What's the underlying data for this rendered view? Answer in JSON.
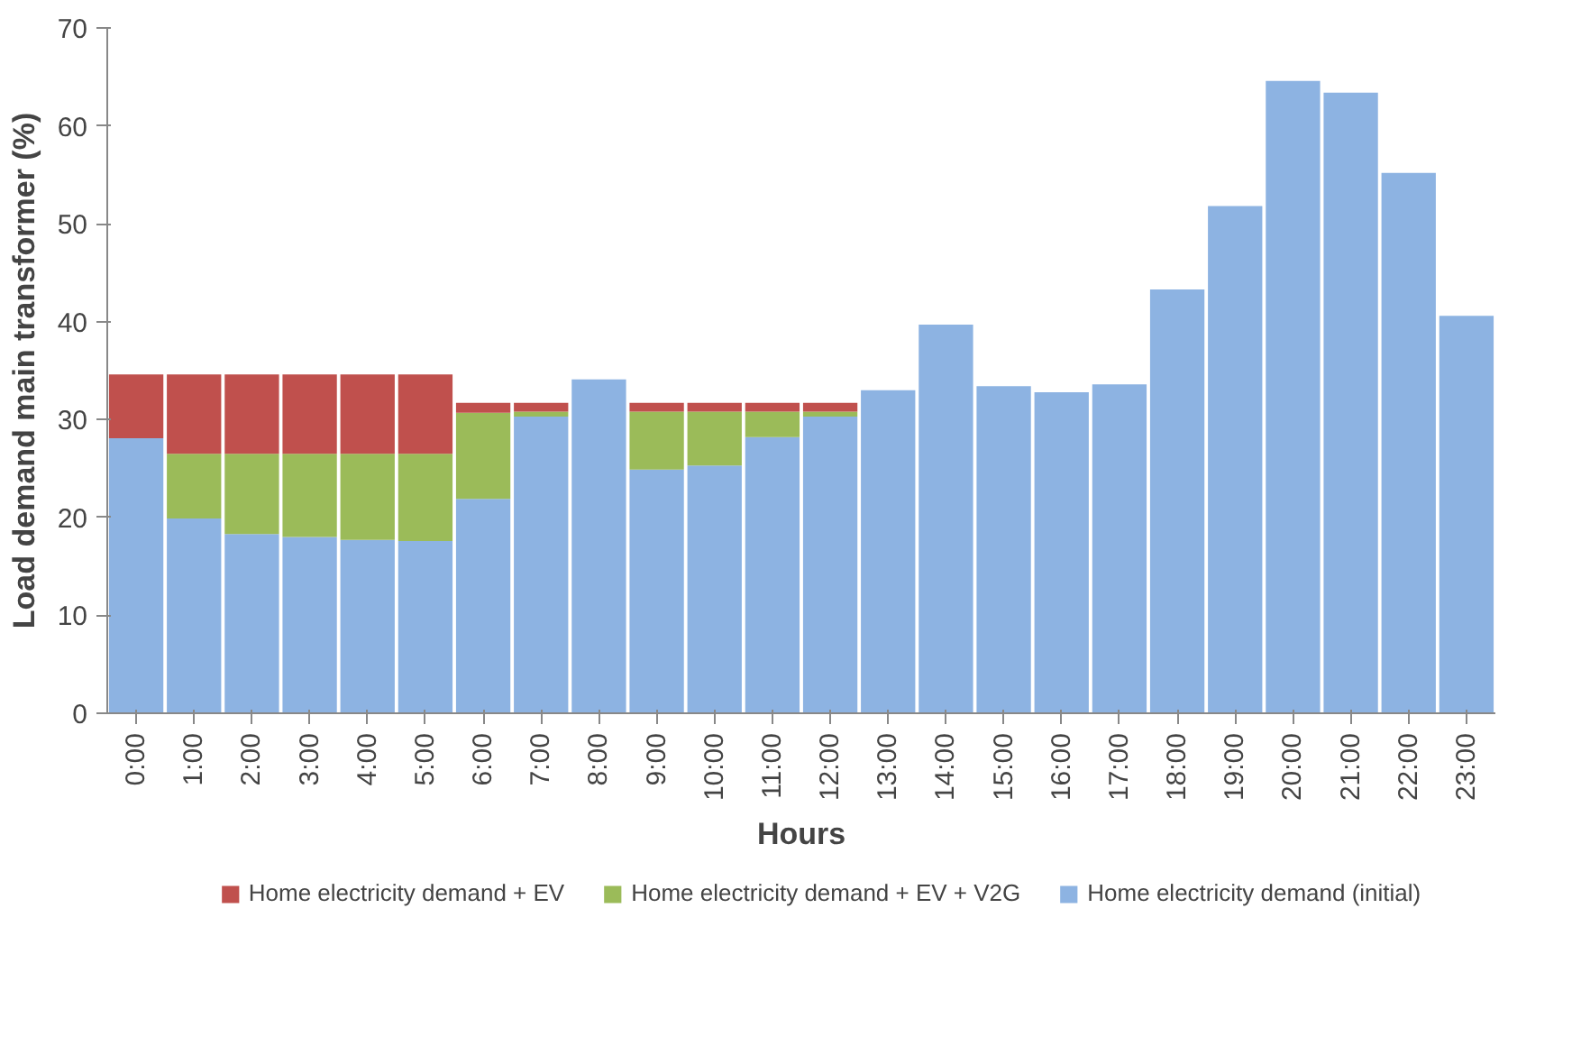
{
  "chart_data": {
    "type": "bar",
    "stacked": true,
    "xlabel": "Hours",
    "ylabel": "Load demand main transformer (%)",
    "categories": [
      "0:00",
      "1:00",
      "2:00",
      "3:00",
      "4:00",
      "5:00",
      "6:00",
      "7:00",
      "8:00",
      "9:00",
      "10:00",
      "11:00",
      "12:00",
      "13:00",
      "14:00",
      "15:00",
      "16:00",
      "17:00",
      "18:00",
      "19:00",
      "20:00",
      "21:00",
      "22:00",
      "23:00"
    ],
    "series": [
      {
        "name": "Home electricity demand (initial)",
        "color": "#8db3e2",
        "values": [
          28.1,
          19.9,
          18.3,
          18.0,
          17.7,
          17.6,
          21.9,
          30.3,
          34.1,
          24.9,
          25.3,
          28.2,
          30.3,
          33.0,
          39.7,
          33.4,
          32.8,
          33.6,
          43.3,
          51.8,
          64.6,
          63.4,
          55.2,
          40.6
        ]
      },
      {
        "name": "Home electricity demand + EV + V2G",
        "color": "#9bbb59",
        "values": [
          null,
          6.6,
          8.2,
          8.5,
          8.8,
          8.9,
          8.8,
          0.5,
          null,
          5.9,
          5.5,
          2.6,
          0.5,
          null,
          null,
          null,
          null,
          null,
          null,
          null,
          null,
          null,
          null,
          null
        ]
      },
      {
        "name": "Home electricity demand + EV",
        "color": "#c0504d",
        "values": [
          6.5,
          8.1,
          8.1,
          8.1,
          8.1,
          8.1,
          1.0,
          0.9,
          null,
          0.9,
          0.9,
          0.9,
          0.9,
          null,
          null,
          null,
          null,
          null,
          null,
          null,
          null,
          null,
          null,
          null
        ]
      }
    ],
    "ylim": [
      0,
      70
    ],
    "yticks": [
      0,
      10,
      20,
      30,
      40,
      50,
      60,
      70
    ],
    "grid": false,
    "legend": "bottom"
  }
}
